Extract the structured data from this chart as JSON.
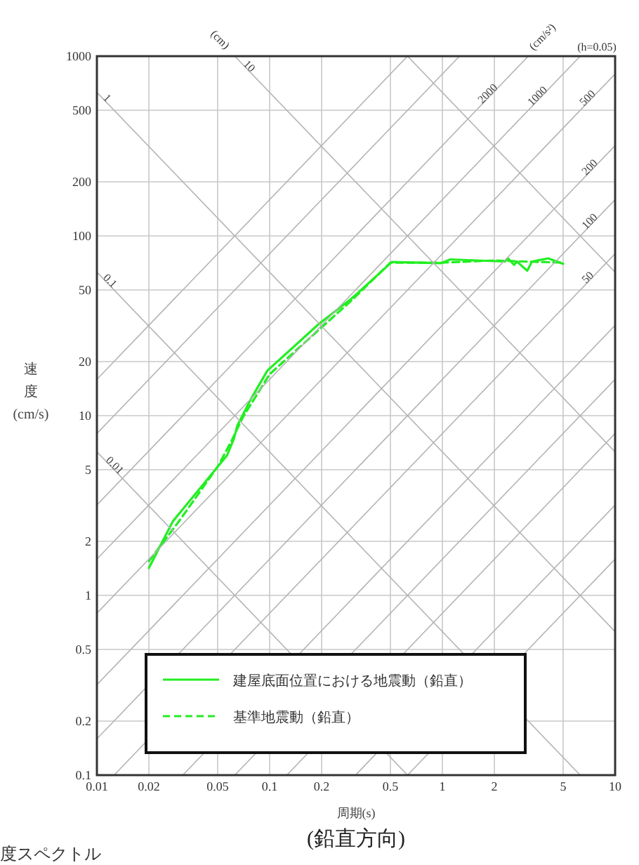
{
  "chart_data": {
    "type": "line",
    "title": "(鉛直方向)",
    "xlabel": "周期(s)",
    "ylabel": "速度(cm/s)",
    "log": "xy",
    "grid": true,
    "legend": "bottom",
    "xlim": [
      0.01,
      10
    ],
    "xticks": [
      0.01,
      0.02,
      0.05,
      0.1,
      0.2,
      0.5,
      1,
      2,
      5,
      10
    ],
    "ylim": [
      0.1,
      1000
    ],
    "yticks": [
      0.1,
      0.2,
      0.5,
      1,
      2,
      5,
      10,
      20,
      50,
      100,
      200,
      500,
      1000
    ],
    "series": [
      {
        "name": "建屋底面位置における地震動（鉛直）",
        "color": "#22ee22",
        "line_style": "solid",
        "x": [
          0.02,
          0.0275,
          0.0566,
          0.062,
          0.065,
          0.078,
          0.097,
          0.193,
          0.298,
          0.51,
          0.98,
          1.11,
          2.3,
          2.4,
          2.6,
          2.7,
          3.1,
          3.3,
          4.1,
          5.0
        ],
        "values": [
          1.42,
          2.58,
          6.0,
          7.4,
          8.8,
          12.4,
          17.8,
          32.4,
          44.8,
          71.6,
          70.5,
          74,
          72,
          75,
          69,
          72,
          64,
          72,
          75,
          70
        ]
      },
      {
        "name": "基準地震動（鉛直）",
        "color": "#22ee22",
        "line_style": "dashed",
        "x": [
          0.02,
          0.03,
          0.05,
          0.06,
          0.07,
          0.1,
          0.2,
          0.3,
          0.5,
          1,
          2,
          3,
          5
        ],
        "values": [
          1.55,
          2.6,
          5.2,
          7.2,
          9.8,
          17,
          31,
          44,
          71,
          71,
          73,
          72,
          71
        ]
      },
      {
        "color": "#b4b4b4",
        "x": [
          0.01,
          0.6283
        ],
        "values": [
          6.283,
          0.1
        ]
      },
      {
        "color": "#b4b4b4",
        "x": [
          0.01,
          6.283
        ],
        "values": [
          62.83,
          0.1
        ]
      },
      {
        "color": "#b4b4b4",
        "x": [
          0.01,
          10
        ],
        "values": [
          628.3,
          0.6283
        ]
      },
      {
        "color": "#b4b4b4",
        "x": [
          0.06283,
          10
        ],
        "values": [
          1000,
          6.283
        ]
      },
      {
        "color": "#b4b4b4",
        "x": [
          0.6283,
          10
        ],
        "values": [
          1000,
          62.83
        ]
      },
      {
        "color": "#b4b4b4",
        "x": [
          0.01,
          0.6283
        ],
        "values": [
          15.92,
          1000
        ]
      },
      {
        "color": "#b4b4b4",
        "x": [
          0.01,
          1.257
        ],
        "values": [
          7.958,
          1000
        ]
      },
      {
        "color": "#b4b4b4",
        "x": [
          0.01,
          3.1416
        ],
        "values": [
          3.183,
          1000
        ]
      },
      {
        "color": "#b4b4b4",
        "x": [
          0.01,
          6.283
        ],
        "values": [
          1.592,
          1000
        ]
      },
      {
        "color": "#b4b4b4",
        "x": [
          0.01,
          10
        ],
        "values": [
          0.7958,
          795.8
        ]
      },
      {
        "color": "#b4b4b4",
        "x": [
          0.01,
          10
        ],
        "values": [
          0.3183,
          318.3
        ]
      },
      {
        "color": "#b4b4b4",
        "x": [
          0.01,
          10
        ],
        "values": [
          0.1592,
          159.2
        ]
      },
      {
        "color": "#b4b4b4",
        "x": [
          0.01257,
          10
        ],
        "values": [
          0.1,
          79.58
        ]
      },
      {
        "color": "#b4b4b4",
        "x": [
          0.03142,
          10
        ],
        "values": [
          0.1,
          31.83
        ]
      },
      {
        "color": "#b4b4b4",
        "x": [
          0.06283,
          10
        ],
        "values": [
          0.1,
          15.92
        ]
      },
      {
        "color": "#b4b4b4",
        "x": [
          0.1257,
          10
        ],
        "values": [
          0.1,
          7.958
        ]
      },
      {
        "color": "#b4b4b4",
        "x": [
          0.3142,
          10
        ],
        "values": [
          0.1,
          3.183
        ]
      },
      {
        "color": "#b4b4b4",
        "x": [
          0.6283,
          10
        ],
        "values": [
          0.1,
          1.592
        ]
      }
    ],
    "annotations": [
      "(cm)",
      "(cm/s²)",
      "(h=0.05)",
      "度スペクトル",
      {
        "text": "1",
        "x": 0.0108,
        "y": 581.8
      },
      {
        "text": "10",
        "x": 0.07,
        "y": 897.6
      },
      {
        "text": "0.1",
        "x": 0.0108,
        "y": 58.18
      },
      {
        "text": "0.01",
        "x": 0.0112,
        "y": 5.61
      },
      {
        "text": "2000",
        "x": 1.7,
        "y": 541.1
      },
      {
        "text": "1000",
        "x": 3.3,
        "y": 525.2
      },
      {
        "text": "500",
        "x": 6.6,
        "y": 525.2
      },
      {
        "text": "200",
        "x": 6.8,
        "y": 216.4
      },
      {
        "text": "100",
        "x": 6.8,
        "y": 108.2
      },
      {
        "text": "50",
        "x": 6.8,
        "y": 54.1
      }
    ]
  }
}
